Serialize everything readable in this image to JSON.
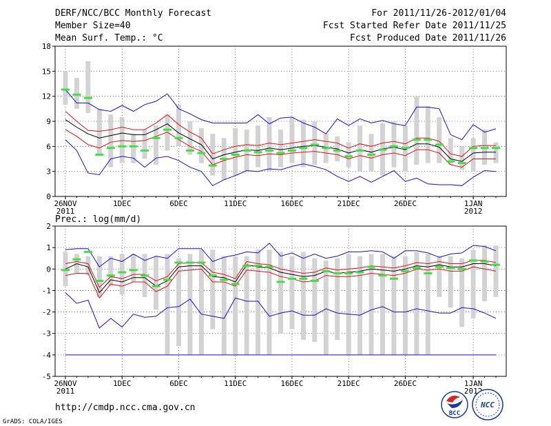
{
  "header": {
    "title": "DERF/NCC/BCC Monthly Forecast",
    "member_size": "Member Size=40",
    "variable": "Mean Surf. Temp.: °C",
    "for_range": "For 2011/11/26-2012/01/04",
    "fcst_started": "Fcst Started Refer Date 2011/11/25",
    "fcst_produced": "Fcst Produced Date 2011/11/26"
  },
  "footer": {
    "url": "http://cmdp.ncc.cma.gov.cn",
    "credit": "GrADS: COLA/IGES",
    "logo_bcc_text": "BCC",
    "logo_ncc_text": "NCC"
  },
  "colors": {
    "box": "#d3d3d5",
    "median": "#44dd44",
    "mean": "#000000",
    "spread": "#dd1111",
    "extreme": "#1111cc",
    "grid": "#555555"
  },
  "chart_data": [
    {
      "type": "box",
      "title": "Mean Surf. Temp.: °C",
      "ylim": [
        0,
        18
      ],
      "yticks": [
        0,
        3,
        6,
        9,
        12,
        15,
        18
      ],
      "xlim": [
        0,
        39
      ],
      "xticks": [
        {
          "day": 0,
          "label": "26NOV",
          "sub": "2011"
        },
        {
          "day": 5,
          "label": "1DEC",
          "sub": ""
        },
        {
          "day": 10,
          "label": "6DEC",
          "sub": ""
        },
        {
          "day": 15,
          "label": "11DEC",
          "sub": ""
        },
        {
          "day": 20,
          "label": "16DEC",
          "sub": ""
        },
        {
          "day": 25,
          "label": "21DEC",
          "sub": ""
        },
        {
          "day": 30,
          "label": "26DEC",
          "sub": ""
        },
        {
          "day": 36,
          "label": "1JAN",
          "sub": "2012"
        }
      ],
      "days": [
        0,
        1,
        2,
        3,
        4,
        5,
        6,
        7,
        8,
        9,
        10,
        11,
        12,
        13,
        14,
        15,
        16,
        17,
        18,
        19,
        20,
        21,
        22,
        23,
        24,
        25,
        26,
        27,
        28,
        29,
        30,
        31,
        32,
        33,
        34,
        35,
        36,
        37,
        38
      ],
      "box_low": [
        11.0,
        10.5,
        10.0,
        5.0,
        3.5,
        4.0,
        4.0,
        4.5,
        3.8,
        5.5,
        6.0,
        5.0,
        4.0,
        2.5,
        2.0,
        2.5,
        3.0,
        3.5,
        3.0,
        3.5,
        4.0,
        3.5,
        3.8,
        4.0,
        4.2,
        3.5,
        3.0,
        3.0,
        2.5,
        3.5,
        3.0,
        3.8,
        4.0,
        4.0,
        3.8,
        3.2,
        3.0,
        3.8,
        4.0
      ],
      "box_high": [
        15.0,
        14.2,
        16.2,
        10.5,
        9.8,
        9.5,
        7.5,
        8.0,
        8.5,
        9.8,
        11.0,
        9.0,
        8.2,
        7.5,
        7.0,
        8.2,
        8.0,
        8.5,
        9.5,
        8.0,
        9.5,
        9.2,
        9.0,
        7.5,
        7.2,
        6.5,
        8.5,
        7.5,
        8.8,
        9.0,
        8.5,
        12.0,
        10.8,
        9.5,
        7.0,
        6.0,
        7.0,
        8.0,
        6.5
      ],
      "median": [
        12.8,
        12.2,
        11.8,
        5.0,
        5.8,
        6.0,
        6.0,
        5.5,
        7.0,
        8.0,
        7.0,
        5.5,
        5.2,
        3.7,
        4.5,
        5.0,
        5.5,
        5.3,
        5.5,
        5.2,
        5.5,
        5.8,
        6.2,
        5.8,
        5.5,
        4.8,
        5.5,
        5.0,
        5.6,
        6.0,
        5.8,
        6.8,
        6.8,
        6.2,
        4.2,
        4.0,
        5.8,
        5.8,
        5.8
      ],
      "mean": [
        9.2,
        8.3,
        7.5,
        7.0,
        7.3,
        7.6,
        7.4,
        7.4,
        8.0,
        8.7,
        7.6,
        6.9,
        6.2,
        4.5,
        5.0,
        5.3,
        5.6,
        5.5,
        5.8,
        5.6,
        5.8,
        6.0,
        6.1,
        5.9,
        5.7,
        5.2,
        5.6,
        5.3,
        5.7,
        5.9,
        5.6,
        6.3,
        6.3,
        5.9,
        4.5,
        4.2,
        5.2,
        5.3,
        5.3
      ],
      "upper": [
        10.2,
        9.0,
        7.9,
        7.8,
        8.0,
        8.3,
        8.0,
        8.0,
        8.8,
        9.8,
        8.6,
        7.7,
        7.0,
        5.1,
        5.6,
        6.0,
        6.2,
        6.1,
        6.4,
        6.2,
        6.4,
        6.6,
        6.8,
        6.6,
        6.4,
        5.8,
        6.3,
        6.0,
        6.4,
        6.6,
        6.3,
        7.0,
        7.0,
        6.6,
        5.1,
        4.8,
        6.0,
        6.1,
        6.1
      ],
      "lower": [
        8.0,
        7.2,
        6.2,
        5.8,
        6.5,
        6.7,
        6.6,
        6.7,
        7.2,
        7.7,
        6.8,
        6.0,
        5.4,
        3.8,
        4.3,
        4.7,
        5.0,
        4.9,
        5.1,
        5.0,
        5.2,
        5.3,
        5.4,
        5.2,
        5.0,
        4.5,
        4.9,
        4.6,
        5.0,
        5.2,
        4.9,
        5.6,
        5.6,
        5.2,
        3.8,
        3.5,
        4.5,
        4.5,
        4.5
      ],
      "max": [
        12.8,
        11.2,
        11.2,
        10.4,
        10.2,
        10.9,
        10.2,
        11.0,
        11.4,
        12.3,
        10.5,
        9.9,
        9.2,
        8.8,
        8.8,
        8.8,
        8.8,
        9.8,
        8.7,
        9.4,
        9.5,
        8.8,
        8.3,
        7.5,
        9.3,
        8.5,
        9.3,
        8.8,
        9.1,
        8.7,
        8.5,
        10.7,
        10.7,
        10.5,
        7.4,
        6.8,
        8.6,
        7.7,
        8.1
      ],
      "min": [
        6.8,
        5.5,
        2.8,
        2.6,
        4.5,
        4.8,
        4.6,
        3.5,
        4.6,
        4.8,
        4.3,
        3.5,
        3.0,
        1.3,
        2.0,
        2.5,
        3.1,
        3.0,
        3.3,
        3.2,
        3.6,
        3.9,
        3.6,
        3.2,
        2.4,
        1.8,
        2.4,
        1.7,
        2.4,
        3.1,
        1.8,
        2.2,
        1.5,
        1.4,
        1.4,
        1.3,
        2.3,
        3.1,
        3.0
      ]
    },
    {
      "type": "box",
      "title": "Prec.: log(mm/d)",
      "ylim": [
        -5,
        2
      ],
      "yticks": [
        -5,
        -4,
        -3,
        -2,
        -1,
        0,
        1,
        2
      ],
      "xlim": [
        0,
        39
      ],
      "xticks": [
        {
          "day": 0,
          "label": "26NOV",
          "sub": "2011"
        },
        {
          "day": 5,
          "label": "1DEC",
          "sub": ""
        },
        {
          "day": 10,
          "label": "6DEC",
          "sub": ""
        },
        {
          "day": 15,
          "label": "11DEC",
          "sub": ""
        },
        {
          "day": 20,
          "label": "16DEC",
          "sub": ""
        },
        {
          "day": 25,
          "label": "21DEC",
          "sub": ""
        },
        {
          "day": 30,
          "label": "26DEC",
          "sub": ""
        },
        {
          "day": 36,
          "label": "1JAN",
          "sub": "2012"
        }
      ],
      "days": [
        0,
        1,
        2,
        3,
        4,
        5,
        6,
        7,
        8,
        9,
        10,
        11,
        12,
        13,
        14,
        15,
        16,
        17,
        18,
        19,
        20,
        21,
        22,
        23,
        24,
        25,
        26,
        27,
        28,
        29,
        30,
        31,
        32,
        33,
        34,
        35,
        36,
        37,
        38
      ],
      "box_low": [
        -0.8,
        -0.2,
        -0.3,
        -1.3,
        -0.8,
        -1.2,
        -0.6,
        -1.3,
        -1.9,
        -4.0,
        -3.6,
        -4.0,
        -4.0,
        -2.8,
        -4.0,
        -4.0,
        -4.0,
        -4.0,
        -4.0,
        -3.0,
        -2.8,
        -3.3,
        -3.4,
        -4.0,
        -3.3,
        -4.0,
        -4.0,
        -4.0,
        -4.0,
        -4.0,
        -4.0,
        -4.0,
        -4.0,
        -1.3,
        -1.8,
        -2.7,
        -2.3,
        -1.5,
        -1.3
      ],
      "box_high": [
        0.8,
        0.7,
        0.6,
        0.6,
        0.6,
        0.7,
        0.7,
        0.7,
        0.6,
        0.7,
        0.5,
        0.7,
        0.9,
        0.9,
        0.6,
        0.6,
        0.6,
        0.9,
        0.9,
        0.8,
        0.6,
        0.8,
        0.5,
        0.4,
        0.5,
        0.7,
        0.6,
        0.7,
        0.7,
        0.6,
        0.6,
        0.8,
        0.7,
        0.6,
        0.6,
        0.5,
        0.9,
        1.1,
        1.1
      ],
      "median": [
        -0.05,
        0.45,
        0.8,
        -0.55,
        -0.3,
        -0.15,
        -0.05,
        -0.3,
        -0.8,
        -0.5,
        0.3,
        0.3,
        0.3,
        -0.3,
        -0.5,
        -0.7,
        0.15,
        0.15,
        0.1,
        -0.6,
        -0.45,
        -0.45,
        -0.55,
        -0.1,
        -0.2,
        -0.2,
        -0.15,
        0.1,
        -0.3,
        -0.45,
        -0.1,
        0.05,
        -0.2,
        0.1,
        0.05,
        0.0,
        0.4,
        0.35,
        0.2
      ],
      "mean": [
        0.0,
        0.25,
        0.1,
        -1.1,
        -0.5,
        -0.6,
        -0.4,
        -0.4,
        -0.8,
        -0.55,
        0.1,
        0.15,
        0.15,
        -0.35,
        -0.4,
        -0.6,
        0.2,
        0.1,
        0.05,
        -0.15,
        -0.25,
        -0.35,
        -0.3,
        -0.1,
        -0.2,
        -0.15,
        -0.1,
        0.0,
        -0.05,
        -0.1,
        0.0,
        0.15,
        0.1,
        0.2,
        0.1,
        0.1,
        0.25,
        0.25,
        0.15
      ],
      "upper": [
        0.25,
        0.35,
        0.25,
        -0.85,
        -0.35,
        -0.45,
        -0.25,
        -0.25,
        -0.55,
        -0.35,
        0.25,
        0.3,
        0.3,
        -0.15,
        -0.25,
        -0.45,
        0.35,
        0.25,
        0.2,
        0.0,
        -0.1,
        -0.2,
        -0.15,
        0.05,
        -0.05,
        0.0,
        0.05,
        0.15,
        0.1,
        0.05,
        0.15,
        0.3,
        0.25,
        0.35,
        0.25,
        0.25,
        0.4,
        0.4,
        0.3
      ],
      "lower": [
        -0.3,
        -0.2,
        -0.2,
        -1.35,
        -0.7,
        -0.8,
        -0.6,
        -0.6,
        -1.05,
        -0.8,
        -0.1,
        -0.05,
        0.0,
        -0.6,
        -0.6,
        -0.8,
        -0.05,
        -0.1,
        -0.15,
        -0.35,
        -0.45,
        -0.6,
        -0.55,
        -0.3,
        -0.35,
        -0.35,
        -0.3,
        -0.2,
        -0.25,
        -0.3,
        -0.2,
        0.0,
        -0.05,
        0.0,
        -0.1,
        -0.1,
        0.1,
        0.0,
        -0.1
      ],
      "max": [
        0.9,
        0.95,
        0.95,
        0.1,
        0.5,
        0.35,
        0.7,
        0.4,
        0.6,
        0.5,
        0.95,
        0.95,
        0.95,
        0.35,
        0.55,
        0.65,
        0.8,
        0.75,
        1.2,
        0.6,
        0.75,
        0.5,
        0.7,
        0.5,
        0.6,
        0.8,
        0.8,
        0.85,
        0.8,
        0.5,
        0.85,
        0.85,
        0.75,
        0.55,
        0.7,
        0.75,
        1.1,
        1.05,
        0.85
      ],
      "min": [
        -1.1,
        -1.6,
        -1.45,
        -2.75,
        -2.3,
        -2.7,
        -2.1,
        -2.25,
        -2.2,
        -1.8,
        -1.75,
        -1.4,
        -2.1,
        -2.2,
        -2.3,
        -1.35,
        -1.5,
        -1.5,
        -2.2,
        -2.05,
        -1.95,
        -2.15,
        -2.15,
        -1.85,
        -2.05,
        -2.1,
        -2.15,
        -1.9,
        -1.75,
        -2.0,
        -2.0,
        -1.85,
        -1.95,
        -2.05,
        -2.05,
        -1.8,
        -1.85,
        -2.05,
        -2.3
      ],
      "floor": -4.0
    }
  ],
  "panel_labels": {
    "prec_title": "Prec.: log(mm/d)"
  }
}
